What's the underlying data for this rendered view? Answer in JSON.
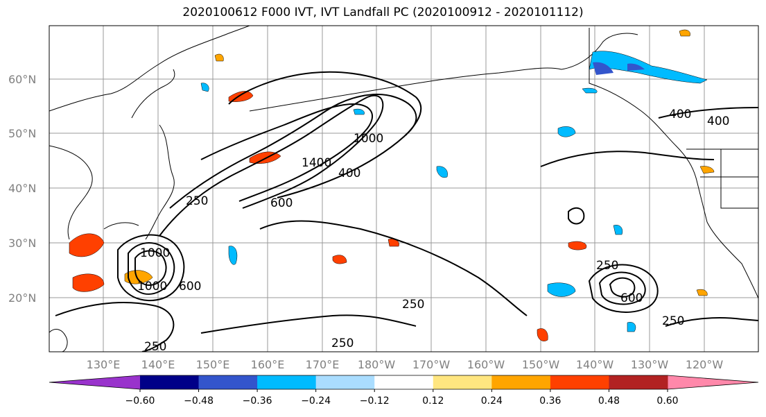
{
  "title": "2020100612 F000 IVT, IVT Landfall PC (2020100912 - 2020101112)",
  "lat_labels": [
    "60°N",
    "50°N",
    "40°N",
    "30°N",
    "20°N"
  ],
  "lon_labels": [
    "130°E",
    "140°E",
    "150°E",
    "160°E",
    "170°E",
    "180°W",
    "170°W",
    "160°W",
    "150°W",
    "140°W",
    "130°W",
    "120°W"
  ],
  "colorbar": {
    "colors": [
      "#9933cc",
      "#000088",
      "#3355cc",
      "#00bbff",
      "#aaddff",
      "#ffffff",
      "#ffe680",
      "#ffa500",
      "#ff4000",
      "#b22222",
      "#ff88aa"
    ],
    "tick_labels": [
      "-0.60",
      "-0.48",
      "-0.36",
      "-0.24",
      "-0.12",
      "0.12",
      "0.24",
      "0.36",
      "0.48",
      "0.60"
    ]
  },
  "contour_labels": [
    "250",
    "400",
    "600",
    "1000",
    "1400",
    "250",
    "400",
    "600",
    "1000",
    "250",
    "250",
    "250",
    "250",
    "400",
    "1000",
    "600"
  ]
}
